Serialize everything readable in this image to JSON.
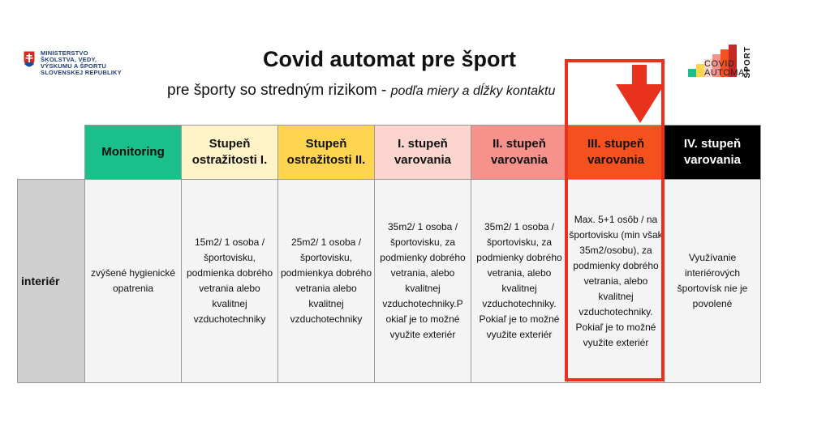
{
  "ministry": {
    "lines": [
      "MINISTERSTVO",
      "ŠKOLSTVA, VEDY,",
      "VÝSKUMU A ŠPORTU",
      "SLOVENSKEJ REPUBLIKY"
    ]
  },
  "title": "Covid automat pre šport",
  "subtitle": {
    "main": "pre športy so stredným rizikom - ",
    "italic": "podľa miery a dĺžky kontaktu"
  },
  "sport_logo": {
    "line1": "COVID",
    "line2": "AUTOMAT",
    "vertical": "ŠPORT"
  },
  "colors": {
    "monitoring": "#1bbf8a",
    "ostrazitost1": "#fff3c7",
    "ostrazitost2": "#ffd54f",
    "varovanie1": "#fcd5ce",
    "varovanie2": "#f7918c",
    "varovanie3": "#f4511e",
    "varovanie4": "#000000",
    "highlight": "#e8321d"
  },
  "table": {
    "headers": [
      {
        "label": "Monitoring"
      },
      {
        "label": "Stupeň ostražitosti I."
      },
      {
        "label": "Stupeň ostražitosti II."
      },
      {
        "label": "I. stupeň varovania"
      },
      {
        "label": "II. stupeň varovania"
      },
      {
        "label": "III. stupeň varovania"
      },
      {
        "label": "IV. stupeň varovania"
      }
    ],
    "row_label": "interiér",
    "cells": [
      "zvýšené hygienické opatrenia",
      "15m2/ 1 osoba / športovisku, podmienka dobrého vetrania alebo kvalitnej vzduchotechniky",
      "25m2/ 1 osoba / športovisku, podmienkya dobrého vetrania alebo kvalitnej vzduchotechniky",
      "35m2/ 1 osoba / športovisku, za podmienky dobrého vetrania, alebo kvalitnej vzduchotechniky.P okiaľ je to možné využite exteriér",
      "35m2/ 1 osoba / športovisku, za podmienky dobrého vetrania, alebo kvalitnej vzduchotechniky. Pokiaľ je to možné využite exteriér",
      "Max. 5+1 osôb / na športovisku (min však 35m2/osobu), za podmienky dobrého vetrania, alebo kvalitnej vzduchotechniky. Pokiaľ je to možné využite exteriér",
      "Využívanie interiérových športovísk nie je povolené"
    ]
  }
}
